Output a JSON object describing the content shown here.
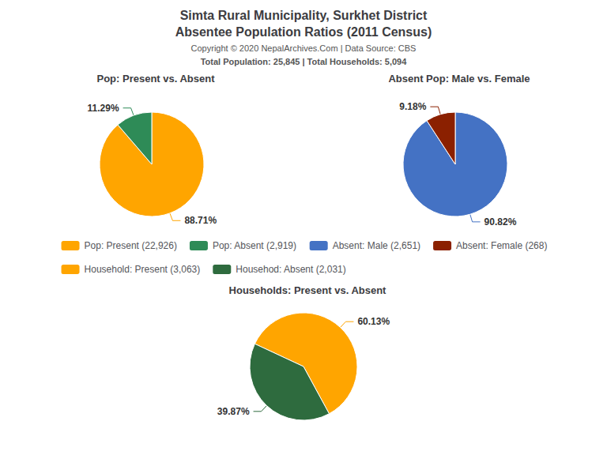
{
  "title": "Simta Rural Municipality, Surkhet District",
  "subtitle": "Absentee Population Ratios (2011 Census)",
  "annotations": [
    "Copyright © 2020 NepalArchives.Com | Data Source: CBS",
    "Total Population: 25,845 | Total Households: 5,094"
  ],
  "legend": "center",
  "chart_data": [
    {
      "type": "pie",
      "title": "Pop: Present vs. Absent",
      "categories": [
        "Pop: Present (22,926)",
        "Pop: Absent (2,919)"
      ],
      "values": [
        88.71,
        11.29
      ],
      "value_labels": [
        "88.71%",
        "11.29%"
      ],
      "colors": [
        "#FFA500",
        "#2E8B57"
      ],
      "data_labels": true
    },
    {
      "type": "pie",
      "title": "Absent Pop: Male vs. Female",
      "categories": [
        "Absent: Male (2,651)",
        "Absent: Female (268)"
      ],
      "values": [
        90.82,
        9.18
      ],
      "value_labels": [
        "90.82%",
        "9.18%"
      ],
      "colors": [
        "#4472C4",
        "#8B2000"
      ],
      "data_labels": true
    },
    {
      "type": "pie",
      "title": "Households: Present vs. Absent",
      "categories": [
        "Household: Present (3,063)",
        "Househod: Absent (2,031)"
      ],
      "values": [
        60.13,
        39.87
      ],
      "value_labels": [
        "60.13%",
        "39.87%"
      ],
      "colors": [
        "#FFA500",
        "#2E6B3E"
      ],
      "data_labels": true
    }
  ]
}
